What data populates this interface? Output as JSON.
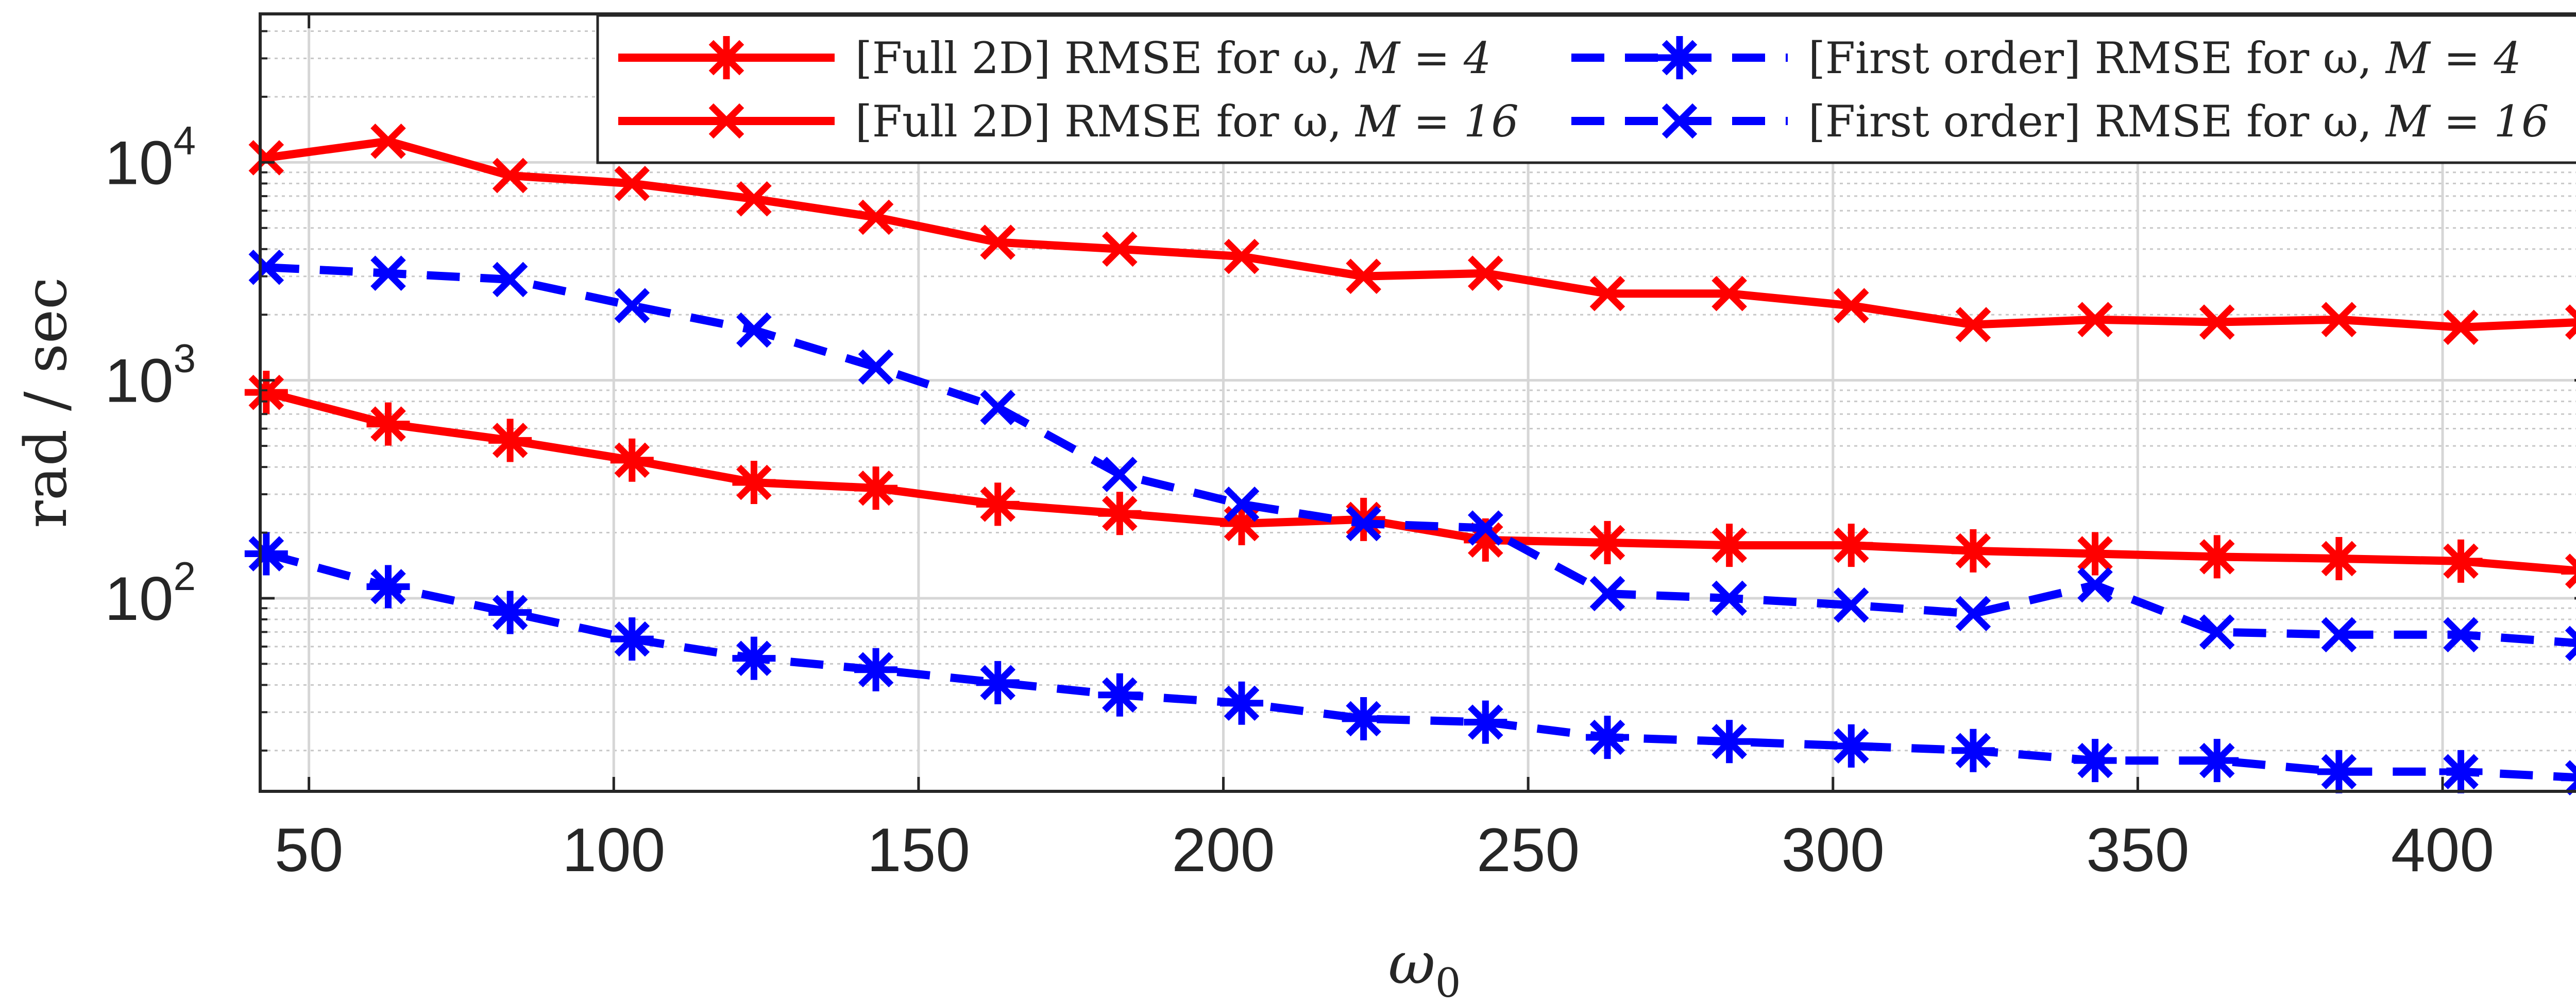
{
  "chart_data": {
    "type": "line",
    "title": "",
    "xlabel_symbol": "ω",
    "xlabel_sub": "0",
    "ylabel": "rad / sec",
    "xlim": [
      42,
      424
    ],
    "ylim": [
      13,
      48000
    ],
    "yscale": "log",
    "grid": true,
    "minor_grid": true,
    "legend_position": "top-right",
    "legend_columns": 2,
    "x_ticks": [
      50,
      100,
      150,
      200,
      250,
      300,
      350,
      400
    ],
    "x_tick_labels": [
      "50",
      "100",
      "150",
      "200",
      "250",
      "300",
      "350",
      "400"
    ],
    "y_ticks": [
      {
        "value": 100,
        "base": "10",
        "exp": "2"
      },
      {
        "value": 1000,
        "base": "10",
        "exp": "3"
      },
      {
        "value": 10000,
        "base": "10",
        "exp": "4"
      }
    ],
    "x": [
      43,
      63,
      83,
      103,
      123,
      143,
      163,
      183,
      203,
      223,
      243,
      263,
      283,
      303,
      323,
      343,
      363,
      383,
      403,
      423
    ],
    "series": [
      {
        "name": "[Full 2D] RMSE for ω, M = 4",
        "legend_text": "[Full 2D] RMSE for ω,",
        "legend_m": "M = 4",
        "color": "#ff0000",
        "dash": "solid",
        "marker": "asterisk",
        "values": [
          880,
          630,
          530,
          430,
          340,
          320,
          270,
          245,
          220,
          230,
          185,
          180,
          175,
          175,
          165,
          160,
          155,
          152,
          148,
          133
        ]
      },
      {
        "name": "[Full 2D] RMSE for ω, M = 16",
        "legend_text": "[Full 2D] RMSE for ω,",
        "legend_m": "M = 16",
        "color": "#ff0000",
        "dash": "solid",
        "marker": "x",
        "values": [
          10500,
          12500,
          8700,
          8000,
          6800,
          5600,
          4300,
          4000,
          3700,
          3000,
          3100,
          2500,
          2500,
          2200,
          1800,
          1900,
          1850,
          1900,
          1750,
          1850
        ]
      },
      {
        "name": "[First order] RMSE for ω, M = 4",
        "legend_text": "[First order] RMSE for ω,",
        "legend_m": "M = 4",
        "color": "#0000ff",
        "dash": "dashed",
        "marker": "asterisk",
        "values": [
          160,
          113,
          86,
          65,
          53,
          47,
          41,
          36,
          33,
          28,
          27,
          23,
          22,
          21,
          20,
          18,
          18,
          16,
          16,
          15
        ]
      },
      {
        "name": "[First order] RMSE for ω, M = 16",
        "legend_text": "[First order] RMSE for ω,",
        "legend_m": "M = 16",
        "color": "#0000ff",
        "dash": "dashed",
        "marker": "x",
        "values": [
          3300,
          3100,
          2900,
          2200,
          1700,
          1150,
          750,
          370,
          270,
          220,
          210,
          105,
          100,
          93,
          85,
          115,
          70,
          68,
          68,
          62
        ]
      }
    ]
  }
}
